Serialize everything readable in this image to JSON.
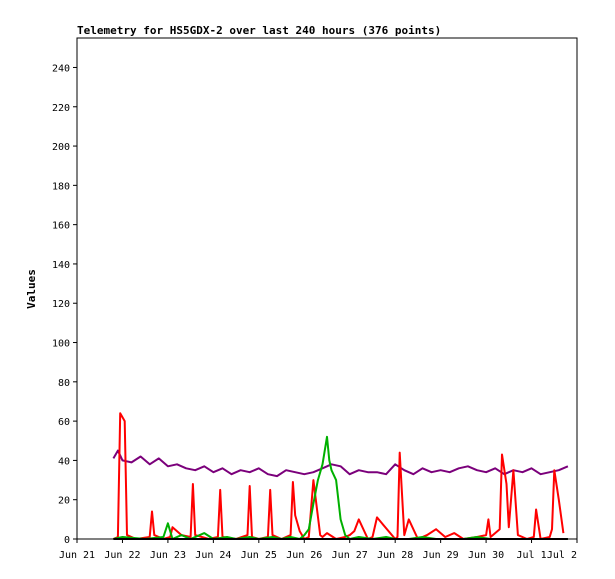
{
  "chart_data": {
    "type": "line",
    "title": "Telemetry for HS5GDX-2 over last 240 hours (376 points)",
    "xlabel": "",
    "ylabel": "Values",
    "ylim": [
      0,
      255
    ],
    "yticks": [
      0,
      20,
      40,
      60,
      80,
      100,
      120,
      140,
      160,
      180,
      200,
      220,
      240
    ],
    "xlim": [
      21.0,
      32.0
    ],
    "xticks": [
      {
        "x": 21,
        "label": "Jun 21"
      },
      {
        "x": 22,
        "label": "Jun 22"
      },
      {
        "x": 23,
        "label": "Jun 23"
      },
      {
        "x": 24,
        "label": "Jun 24"
      },
      {
        "x": 25,
        "label": "Jun 25"
      },
      {
        "x": 26,
        "label": "Jun 26"
      },
      {
        "x": 27,
        "label": "Jun 27"
      },
      {
        "x": 28,
        "label": "Jun 28"
      },
      {
        "x": 29,
        "label": "Jun 29"
      },
      {
        "x": 30,
        "label": "Jun 30"
      },
      {
        "x": 31,
        "label": "Jul 1"
      },
      {
        "x": 32,
        "label": "Jul 2"
      }
    ],
    "grid": false,
    "legend": "none",
    "series": [
      {
        "color": "#7b007b",
        "x": [
          21.8,
          21.9,
          22.0,
          22.2,
          22.4,
          22.6,
          22.8,
          23.0,
          23.2,
          23.4,
          23.6,
          23.8,
          24.0,
          24.2,
          24.4,
          24.6,
          24.8,
          25.0,
          25.2,
          25.4,
          25.6,
          25.8,
          26.0,
          26.2,
          26.4,
          26.6,
          26.8,
          27.0,
          27.2,
          27.4,
          27.6,
          27.8,
          28.0,
          28.2,
          28.4,
          28.6,
          28.8,
          29.0,
          29.2,
          29.4,
          29.6,
          29.8,
          30.0,
          30.2,
          30.4,
          30.6,
          30.8,
          31.0,
          31.2,
          31.4,
          31.6,
          31.8
        ],
        "y": [
          41,
          45,
          40,
          39,
          42,
          38,
          41,
          37,
          38,
          36,
          35,
          37,
          34,
          36,
          33,
          35,
          34,
          36,
          33,
          32,
          35,
          34,
          33,
          34,
          36,
          38,
          37,
          33,
          35,
          34,
          34,
          33,
          38,
          35,
          33,
          36,
          34,
          35,
          34,
          36,
          37,
          35,
          34,
          36,
          33,
          35,
          34,
          36,
          33,
          34,
          35,
          37
        ]
      },
      {
        "color": "#ff0000",
        "x": [
          21.8,
          21.9,
          21.95,
          22.05,
          22.1,
          22.3,
          22.6,
          22.65,
          22.7,
          22.9,
          23.05,
          23.1,
          23.3,
          23.5,
          23.55,
          23.6,
          23.9,
          24.1,
          24.15,
          24.2,
          24.5,
          24.75,
          24.8,
          24.85,
          25.0,
          25.2,
          25.25,
          25.3,
          25.5,
          25.6,
          25.7,
          25.75,
          25.8,
          25.9,
          26.0,
          26.1,
          26.2,
          26.35,
          26.4,
          26.5,
          26.7,
          26.9,
          27.0,
          27.1,
          27.2,
          27.4,
          27.5,
          27.6,
          28.0,
          28.05,
          28.1,
          28.2,
          28.3,
          28.5,
          28.7,
          28.9,
          29.1,
          29.3,
          29.5,
          29.8,
          30.0,
          30.05,
          30.1,
          30.3,
          30.35,
          30.45,
          30.5,
          30.6,
          30.7,
          30.9,
          31.05,
          31.1,
          31.2,
          31.4,
          31.45,
          31.5,
          31.6,
          31.7
        ],
        "y": [
          0,
          1,
          64,
          60,
          2,
          0,
          1,
          14,
          2,
          0,
          1,
          6,
          2,
          1,
          28,
          2,
          0,
          1,
          25,
          1,
          0,
          2,
          27,
          1,
          0,
          1,
          25,
          2,
          0,
          1,
          2,
          29,
          12,
          4,
          0,
          1,
          30,
          2,
          1,
          3,
          0,
          1,
          2,
          4,
          10,
          0,
          1,
          11,
          0,
          1,
          44,
          2,
          10,
          0,
          2,
          5,
          1,
          3,
          0,
          1,
          2,
          10,
          1,
          5,
          43,
          28,
          6,
          35,
          2,
          0,
          1,
          15,
          0,
          1,
          5,
          35,
          20,
          3
        ]
      },
      {
        "color": "#00b000",
        "x": [
          21.8,
          22.0,
          22.5,
          22.9,
          23.0,
          23.1,
          23.3,
          23.5,
          23.8,
          24.0,
          24.3,
          24.5,
          24.8,
          25.0,
          25.3,
          25.5,
          25.7,
          25.9,
          26.0,
          26.1,
          26.2,
          26.3,
          26.4,
          26.5,
          26.55,
          26.6,
          26.7,
          26.8,
          26.9,
          27.0,
          27.2,
          27.5,
          27.8,
          28.0,
          28.3,
          28.6,
          28.9,
          29.2,
          29.5,
          29.8,
          30.1,
          30.4,
          30.7,
          31.0,
          31.3,
          31.6,
          31.8
        ],
        "y": [
          0,
          1,
          0,
          1,
          8,
          0,
          2,
          0,
          3,
          0,
          1,
          0,
          1,
          0,
          1,
          0,
          1,
          0,
          2,
          5,
          18,
          30,
          38,
          52,
          40,
          35,
          30,
          10,
          2,
          0,
          1,
          0,
          1,
          0,
          0,
          1,
          0,
          0,
          0,
          1,
          0,
          0,
          0,
          0,
          0,
          0,
          0
        ]
      },
      {
        "color": "#000000",
        "x": [
          21.8,
          31.8
        ],
        "y": [
          0,
          0
        ]
      }
    ]
  }
}
